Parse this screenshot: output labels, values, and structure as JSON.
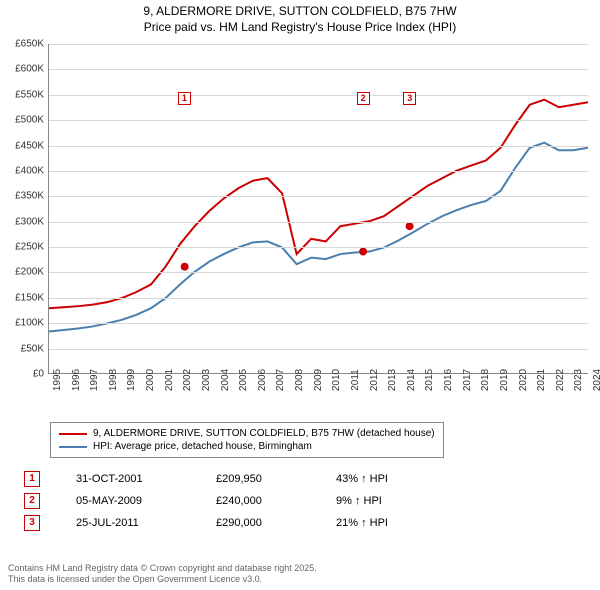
{
  "title_line1": "9, ALDERMORE DRIVE, SUTTON COLDFIELD, B75 7HW",
  "title_line2": "Price paid vs. HM Land Registry's House Price Index (HPI)",
  "chart": {
    "type": "line",
    "background_color": "#ffffff",
    "grid_color": "#d8d8d8",
    "axis_color": "#888888",
    "line_width": 2,
    "ylim": [
      0,
      650000
    ],
    "ytick_step": 50000,
    "yticks": [
      "£0",
      "£50K",
      "£100K",
      "£150K",
      "£200K",
      "£250K",
      "£300K",
      "£350K",
      "£400K",
      "£450K",
      "£500K",
      "£550K",
      "£600K",
      "£650K"
    ],
    "xticks": [
      "1995",
      "1996",
      "1997",
      "1998",
      "1999",
      "2000",
      "2001",
      "2002",
      "2003",
      "2004",
      "2005",
      "2006",
      "2007",
      "2008",
      "2009",
      "2010",
      "2011",
      "2012",
      "2013",
      "2014",
      "2015",
      "2016",
      "2017",
      "2018",
      "2019",
      "2020",
      "2021",
      "2022",
      "2023",
      "2024"
    ],
    "series": [
      {
        "name": "9, ALDERMORE DRIVE, SUTTON COLDFIELD, B75 7HW (detached house)",
        "color": "#cc0000",
        "y": [
          128,
          130,
          132,
          135,
          140,
          148,
          160,
          175,
          210,
          255,
          290,
          320,
          345,
          365,
          380,
          385,
          355,
          235,
          265,
          260,
          290,
          295,
          300,
          310,
          330,
          350,
          370,
          385,
          400,
          410,
          420,
          445,
          490,
          530,
          540,
          525,
          530,
          535
        ]
      },
      {
        "name": "HPI: Average price, detached house, Birmingham",
        "color": "#4a7fb0",
        "y": [
          82,
          85,
          88,
          92,
          98,
          105,
          115,
          128,
          148,
          175,
          200,
          220,
          235,
          248,
          258,
          260,
          248,
          215,
          228,
          225,
          235,
          238,
          240,
          248,
          262,
          278,
          295,
          310,
          322,
          332,
          340,
          360,
          405,
          445,
          455,
          440,
          440,
          445
        ]
      }
    ],
    "markers": [
      {
        "label": "1",
        "x_index": 7.3,
        "y": 209.95
      },
      {
        "label": "2",
        "x_index": 16.9,
        "y": 240
      },
      {
        "label": "3",
        "x_index": 19.4,
        "y": 290
      }
    ],
    "marker_label_positions": [
      {
        "label": "1",
        "x_index": 7.3,
        "y": 555
      },
      {
        "label": "2",
        "x_index": 16.9,
        "y": 555
      },
      {
        "label": "3",
        "x_index": 19.4,
        "y": 555
      }
    ]
  },
  "legend": {
    "items": [
      {
        "color": "#cc0000",
        "label": "9, ALDERMORE DRIVE, SUTTON COLDFIELD, B75 7HW (detached house)"
      },
      {
        "color": "#4a7fb0",
        "label": "HPI: Average price, detached house, Birmingham"
      }
    ]
  },
  "sales": [
    {
      "n": "1",
      "date": "31-OCT-2001",
      "price": "£209,950",
      "pct": "43% ↑ HPI"
    },
    {
      "n": "2",
      "date": "05-MAY-2009",
      "price": "£240,000",
      "pct": "9% ↑ HPI"
    },
    {
      "n": "3",
      "date": "25-JUL-2011",
      "price": "£290,000",
      "pct": "21% ↑ HPI"
    }
  ],
  "footer_line1": "Contains HM Land Registry data © Crown copyright and database right 2025.",
  "footer_line2": "This data is licensed under the Open Government Licence v3.0."
}
